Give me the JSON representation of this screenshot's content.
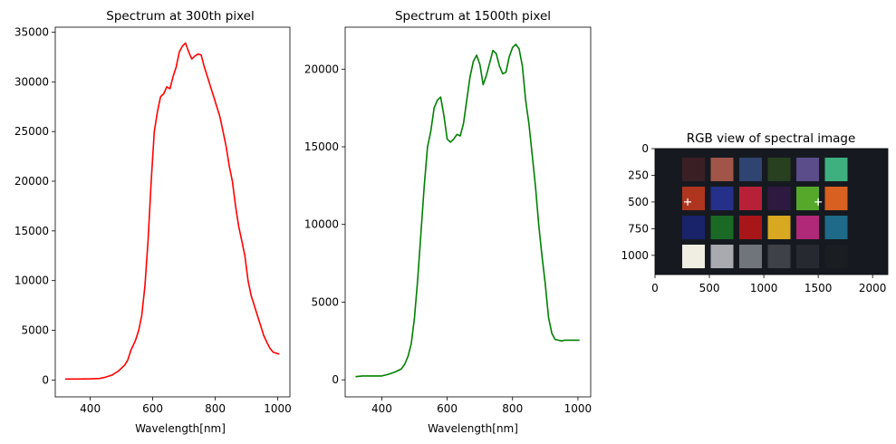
{
  "chart_data": [
    {
      "type": "line",
      "title": "Spectrum at 300th pixel",
      "xlabel": "Wavelength[nm]",
      "ylabel": "",
      "xlim": [
        288,
        1039
      ],
      "ylim": [
        -1700,
        35500
      ],
      "xticks": [
        400,
        600,
        800,
        1000
      ],
      "yticks": [
        0,
        5000,
        10000,
        15000,
        20000,
        25000,
        30000,
        35000
      ],
      "grid": false,
      "series": [
        {
          "color": "#ff0000",
          "x": [
            320,
            360,
            400,
            430,
            450,
            470,
            490,
            510,
            520,
            530,
            545,
            555,
            565,
            575,
            585,
            595,
            605,
            615,
            625,
            635,
            645,
            655,
            665,
            675,
            685,
            695,
            705,
            715,
            725,
            735,
            745,
            755,
            765,
            775,
            785,
            795,
            805,
            815,
            825,
            835,
            845,
            855,
            865,
            875,
            885,
            895,
            905,
            915,
            925,
            935,
            945,
            955,
            965,
            975,
            985,
            995,
            1005
          ],
          "y": [
            100,
            100,
            110,
            150,
            300,
            500,
            900,
            1500,
            2000,
            3000,
            4000,
            5000,
            6500,
            9500,
            14000,
            20000,
            25000,
            27000,
            28500,
            28800,
            29500,
            29300,
            30500,
            31500,
            33000,
            33600,
            33900,
            33000,
            32300,
            32600,
            32800,
            32700,
            31500,
            30500,
            29500,
            28500,
            27500,
            26500,
            25000,
            23500,
            21500,
            20000,
            17500,
            15500,
            14000,
            12500,
            10000,
            8500,
            7500,
            6500,
            5500,
            4500,
            3800,
            3200,
            2800,
            2700,
            2600
          ]
        }
      ]
    },
    {
      "type": "line",
      "title": "Spectrum at 1500th pixel",
      "xlabel": "Wavelength[nm]",
      "ylabel": "",
      "xlim": [
        288,
        1039
      ],
      "ylim": [
        -1100,
        22700
      ],
      "xticks": [
        400,
        600,
        800,
        1000
      ],
      "yticks": [
        0,
        5000,
        10000,
        15000,
        20000
      ],
      "grid": false,
      "series": [
        {
          "color": "#008000",
          "x": [
            320,
            340,
            360,
            380,
            400,
            420,
            440,
            460,
            470,
            480,
            490,
            500,
            510,
            520,
            530,
            540,
            550,
            560,
            570,
            580,
            590,
            600,
            610,
            620,
            630,
            640,
            650,
            660,
            670,
            680,
            690,
            700,
            710,
            720,
            730,
            740,
            750,
            760,
            770,
            780,
            790,
            800,
            810,
            820,
            830,
            840,
            850,
            860,
            870,
            880,
            890,
            900,
            910,
            920,
            930,
            940,
            950,
            960,
            970,
            980,
            990,
            1000,
            1005
          ],
          "y": [
            200,
            250,
            250,
            250,
            250,
            350,
            500,
            700,
            1000,
            1500,
            2300,
            4000,
            6500,
            9500,
            12500,
            15000,
            16000,
            17500,
            18000,
            18200,
            17000,
            15500,
            15300,
            15500,
            15800,
            15700,
            16500,
            18000,
            19500,
            20500,
            20900,
            20300,
            19000,
            19600,
            20400,
            21200,
            21000,
            20200,
            19700,
            19800,
            20800,
            21400,
            21600,
            21300,
            20200,
            18000,
            16500,
            14500,
            12500,
            10000,
            8000,
            6200,
            4000,
            3000,
            2600,
            2550,
            2500,
            2550,
            2550,
            2550,
            2550,
            2550,
            2550
          ]
        }
      ]
    },
    {
      "type": "image",
      "title": "RGB view of spectral image",
      "xlim": [
        0,
        2140
      ],
      "ylim": [
        1180,
        0
      ],
      "xticks": [
        0,
        500,
        1000,
        1500,
        2000
      ],
      "yticks": [
        0,
        250,
        500,
        750,
        1000
      ],
      "background_color": "#161a20",
      "patch_rows": [
        [
          "#3a2025",
          "#a05548",
          "#2f4470",
          "#28401f",
          "#5a4d8a",
          "#3eb080"
        ],
        [
          "#b0351f",
          "#25308a",
          "#b82038",
          "#2e1a40",
          "#55a82a",
          "#d86020"
        ],
        [
          "#18236a",
          "#1a6a25",
          "#a8161a",
          "#d8a820",
          "#b02878",
          "#1e6a88"
        ],
        [
          "#f0ede2",
          "#a8aab0",
          "#70757c",
          "#3e4248",
          "#262a30",
          "#1a1d22"
        ]
      ],
      "markers": [
        {
          "x": 300,
          "y": 500,
          "symbol": "+"
        },
        {
          "x": 1500,
          "y": 500,
          "symbol": "+"
        }
      ]
    }
  ]
}
